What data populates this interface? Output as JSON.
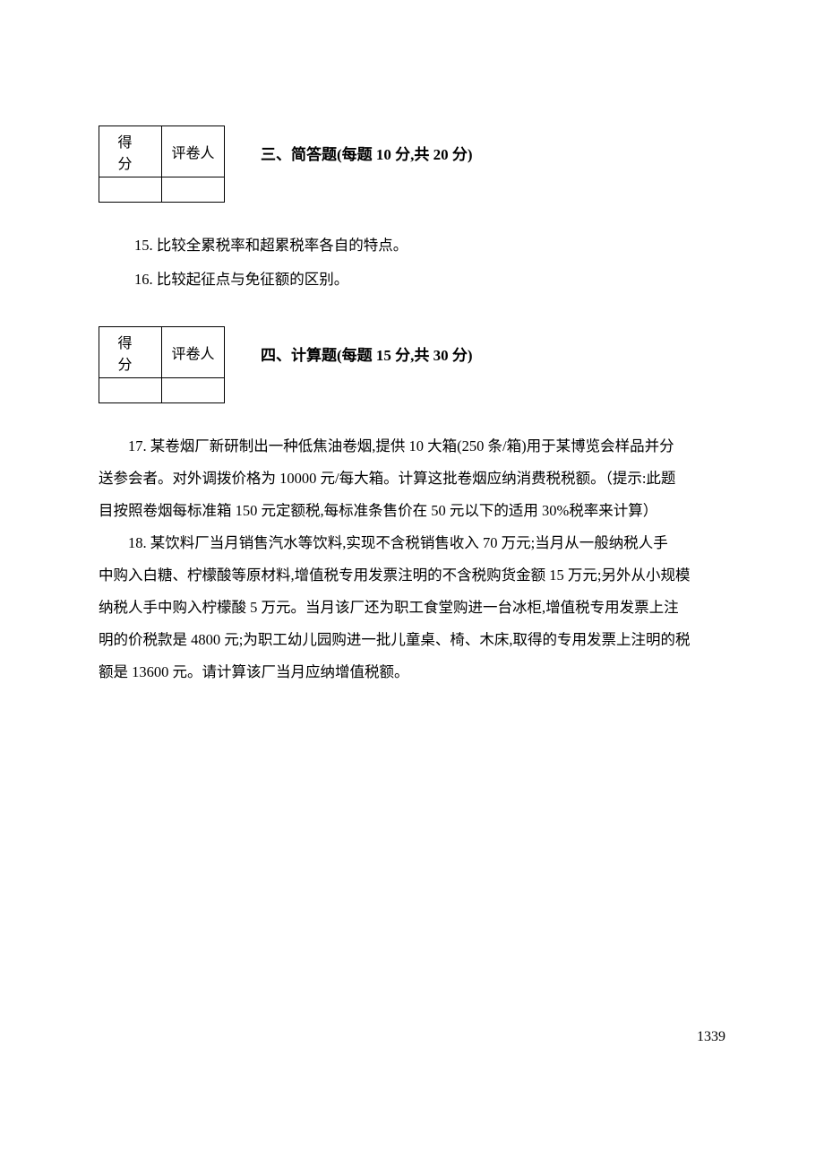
{
  "page": {
    "number": "1339",
    "background_color": "#ffffff",
    "text_color": "#000000",
    "body_fontsize": 16.5,
    "line_height": 36
  },
  "score_table": {
    "headers": [
      "得分",
      "评卷人"
    ],
    "border_color": "#000000"
  },
  "section3": {
    "title": "三、简答题(每题 10 分,共 20 分)",
    "questions": [
      "15. 比较全累税率和超累税率各自的特点。",
      "16. 比较起征点与免征额的区别。"
    ]
  },
  "section4": {
    "title": "四、计算题(每题 15 分,共 30 分)",
    "q17_line1": "17. 某卷烟厂新研制出一种低焦油卷烟,提供 10 大箱(250 条/箱)用于某博览会样品并分",
    "q17_line2": "送参会者。对外调拨价格为 10000 元/每大箱。计算这批卷烟应纳消费税税额。（提示:此题",
    "q17_line3": "目按照卷烟每标准箱 150 元定额税,每标准条售价在 50 元以下的适用 30%税率来计算）",
    "q18_line1": "18. 某饮料厂当月销售汽水等饮料,实现不含税销售收入 70 万元;当月从一般纳税人手",
    "q18_line2": "中购入白糖、柠檬酸等原材料,增值税专用发票注明的不含税购货金额 15 万元;另外从小规模",
    "q18_line3": "纳税人手中购入柠檬酸 5 万元。当月该厂还为职工食堂购进一台冰柜,增值税专用发票上注",
    "q18_line4": "明的价税款是 4800 元;为职工幼儿园购进一批儿童桌、椅、木床,取得的专用发票上注明的税",
    "q18_line5": "额是 13600 元。请计算该厂当月应纳增值税额。"
  }
}
